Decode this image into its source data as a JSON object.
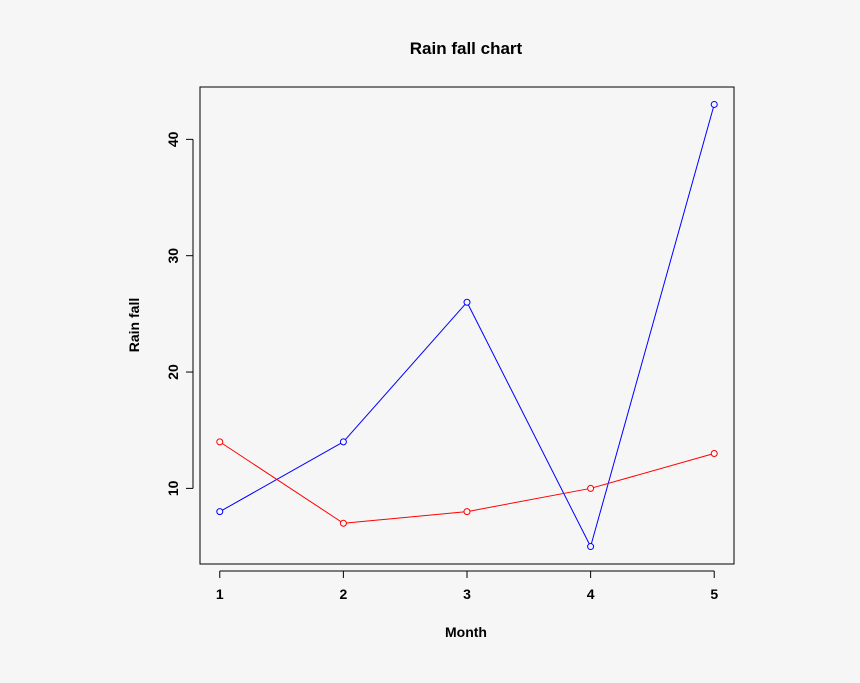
{
  "chart_data": {
    "type": "line",
    "title": "Rain fall chart",
    "xlabel": "Month",
    "ylabel": "Rain fall",
    "x": [
      1,
      2,
      3,
      4,
      5
    ],
    "x_ticks": [
      "1",
      "2",
      "3",
      "4",
      "5"
    ],
    "y_ticks": [
      "10",
      "20",
      "30",
      "40"
    ],
    "y_tick_values": [
      10,
      20,
      30,
      40
    ],
    "xlim": [
      0.84,
      5.16
    ],
    "ylim": [
      3.5,
      44.5
    ],
    "grid": false,
    "markers": "open-circle",
    "series": [
      {
        "values": [
          8,
          14,
          26,
          5,
          43
        ],
        "color": "#0000ff"
      },
      {
        "values": [
          14,
          7,
          8,
          10,
          13
        ],
        "color": "#ff0000"
      }
    ]
  }
}
